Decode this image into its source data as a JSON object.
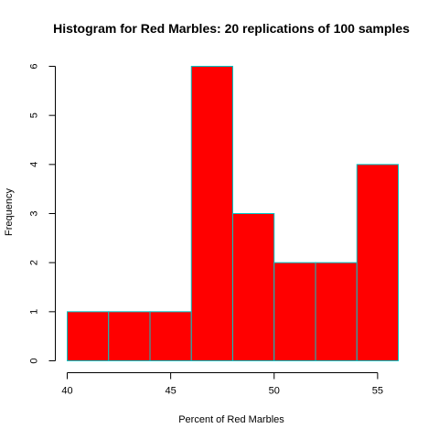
{
  "chart_data": {
    "type": "bar",
    "title": "Histogram for Red Marbles: 20 replications of 100 samples",
    "xlabel": "Percent of Red Marbles",
    "ylabel": "Frequency",
    "bins": [
      {
        "start": 40,
        "end": 42,
        "count": 1
      },
      {
        "start": 42,
        "end": 44,
        "count": 1
      },
      {
        "start": 44,
        "end": 46,
        "count": 1
      },
      {
        "start": 46,
        "end": 48,
        "count": 6
      },
      {
        "start": 48,
        "end": 50,
        "count": 3
      },
      {
        "start": 50,
        "end": 52,
        "count": 2
      },
      {
        "start": 52,
        "end": 54,
        "count": 2
      },
      {
        "start": 54,
        "end": 56,
        "count": 4
      }
    ],
    "xticks": [
      "40",
      "45",
      "50",
      "55"
    ],
    "yticks": [
      "0",
      "1",
      "2",
      "3",
      "4",
      "5",
      "6"
    ],
    "xlim": [
      40,
      56
    ],
    "ylim": [
      0,
      6
    ],
    "grid": false,
    "bar_fill": "#ff0000",
    "bar_border": "#00c8c8"
  }
}
